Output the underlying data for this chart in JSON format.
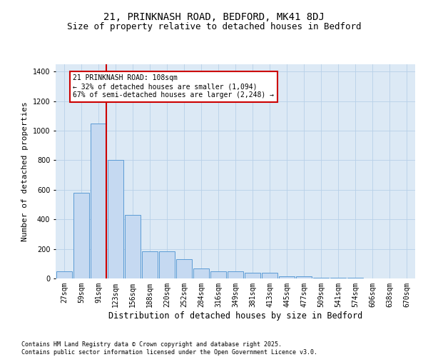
{
  "title": "21, PRINKNASH ROAD, BEDFORD, MK41 8DJ",
  "subtitle": "Size of property relative to detached houses in Bedford",
  "xlabel": "Distribution of detached houses by size in Bedford",
  "ylabel": "Number of detached properties",
  "categories": [
    "27sqm",
    "59sqm",
    "91sqm",
    "123sqm",
    "156sqm",
    "188sqm",
    "220sqm",
    "252sqm",
    "284sqm",
    "316sqm",
    "349sqm",
    "381sqm",
    "413sqm",
    "445sqm",
    "477sqm",
    "509sqm",
    "541sqm",
    "574sqm",
    "606sqm",
    "638sqm",
    "670sqm"
  ],
  "values": [
    50,
    580,
    1050,
    800,
    430,
    185,
    185,
    130,
    70,
    50,
    50,
    40,
    40,
    15,
    15,
    5,
    5,
    3,
    2,
    1,
    1
  ],
  "bar_color": "#c5d9f1",
  "bar_edge_color": "#5b9bd5",
  "grid_color": "#b8d0e8",
  "background_color": "#ffffff",
  "plot_bg_color": "#dce9f5",
  "red_line_x": 2.47,
  "annotation_text": "21 PRINKNASH ROAD: 108sqm\n← 32% of detached houses are smaller (1,094)\n67% of semi-detached houses are larger (2,248) →",
  "annotation_box_edge_color": "#cc0000",
  "red_line_color": "#cc0000",
  "footnote": "Contains HM Land Registry data © Crown copyright and database right 2025.\nContains public sector information licensed under the Open Government Licence v3.0.",
  "ylim": [
    0,
    1450
  ],
  "yticks": [
    0,
    200,
    400,
    600,
    800,
    1000,
    1200,
    1400
  ],
  "title_fontsize": 10,
  "subtitle_fontsize": 9,
  "axis_label_fontsize": 8,
  "tick_fontsize": 7,
  "footnote_fontsize": 6,
  "annotation_fontsize": 7
}
